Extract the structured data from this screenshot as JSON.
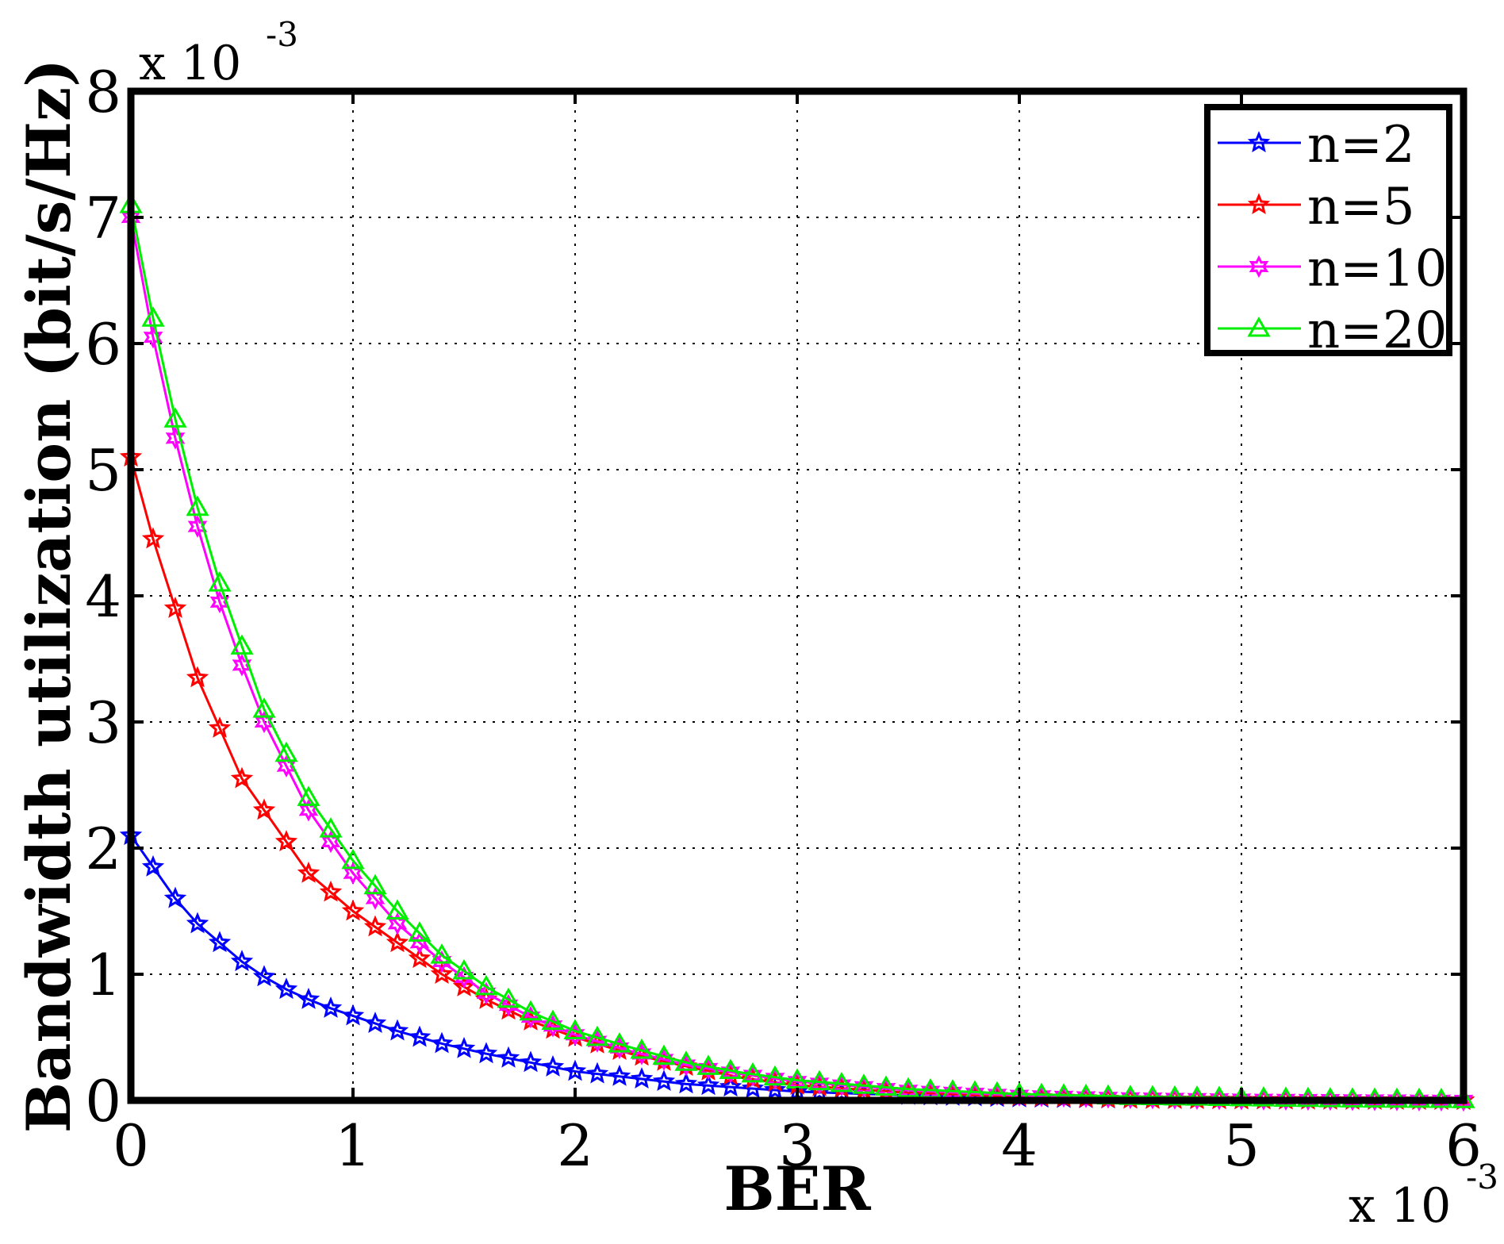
{
  "chart_data": {
    "type": "line",
    "title": "",
    "xlabel": "BER",
    "ylabel": "Bandwidth utilization (bit/s/Hz)",
    "xlim": [
      0,
      6
    ],
    "ylim": [
      0,
      8
    ],
    "x_scale_label": "x 10",
    "x_scale_exp": "-3",
    "y_scale_label": "x 10",
    "y_scale_exp": "-3",
    "xticks": [
      "0",
      "1",
      "2",
      "3",
      "4",
      "5",
      "6"
    ],
    "yticks": [
      "0",
      "1",
      "2",
      "3",
      "4",
      "5",
      "6",
      "7",
      "8"
    ],
    "grid": true,
    "legend_position": "top-right",
    "x": [
      0,
      0.1,
      0.2,
      0.3,
      0.4,
      0.5,
      0.6,
      0.7,
      0.8,
      0.9,
      1.0,
      1.2,
      1.4,
      1.6,
      1.8,
      2.0,
      2.25,
      2.5,
      2.75,
      3.0,
      3.5,
      4.0,
      4.5,
      5.0,
      5.5,
      6.0
    ],
    "series": [
      {
        "name": "n=2",
        "color": "#0000ff",
        "marker": "star",
        "values": [
          2.1,
          1.85,
          1.6,
          1.4,
          1.25,
          1.1,
          0.98,
          0.88,
          0.8,
          0.73,
          0.67,
          0.55,
          0.45,
          0.37,
          0.3,
          0.23,
          0.18,
          0.13,
          0.1,
          0.07,
          0.04,
          0.02,
          0.01,
          0.005,
          0.002,
          0.0
        ]
      },
      {
        "name": "n=5",
        "color": "#ff0000",
        "marker": "star",
        "values": [
          5.1,
          4.45,
          3.9,
          3.35,
          2.95,
          2.55,
          2.3,
          2.05,
          1.8,
          1.65,
          1.5,
          1.25,
          1.0,
          0.8,
          0.63,
          0.5,
          0.37,
          0.27,
          0.18,
          0.12,
          0.06,
          0.03,
          0.01,
          0.005,
          0.002,
          0.0
        ]
      },
      {
        "name": "n=10",
        "color": "#ff00ff",
        "marker": "hexagram",
        "values": [
          7.0,
          6.05,
          5.25,
          4.55,
          3.95,
          3.45,
          3.0,
          2.65,
          2.3,
          2.05,
          1.8,
          1.4,
          1.1,
          0.85,
          0.66,
          0.52,
          0.39,
          0.28,
          0.21,
          0.15,
          0.08,
          0.04,
          0.02,
          0.01,
          0.005,
          0.0
        ]
      },
      {
        "name": "n=20",
        "color": "#00ee00",
        "marker": "triangle",
        "values": [
          7.1,
          6.2,
          5.4,
          4.7,
          4.1,
          3.6,
          3.1,
          2.75,
          2.4,
          2.15,
          1.9,
          1.5,
          1.15,
          0.9,
          0.7,
          0.55,
          0.42,
          0.3,
          0.22,
          0.16,
          0.09,
          0.05,
          0.03,
          0.02,
          0.01,
          0.005
        ]
      }
    ]
  }
}
